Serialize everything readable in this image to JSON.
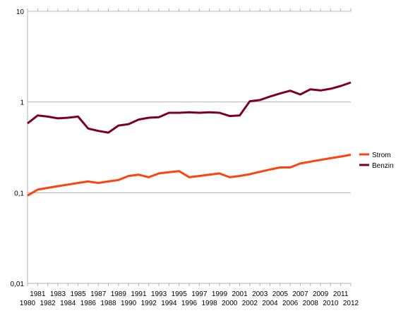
{
  "chart_data": {
    "type": "line",
    "title": "",
    "xlabel": "",
    "ylabel": "",
    "y_scale": "log",
    "ylim": [
      0.01,
      10
    ],
    "y_ticks": [
      {
        "value": 0.01,
        "label": "0,01"
      },
      {
        "value": 0.1,
        "label": "0,1"
      },
      {
        "value": 1,
        "label": "1"
      },
      {
        "value": 10,
        "label": "10"
      }
    ],
    "grid": true,
    "legend_position": "right",
    "x": [
      1980,
      1981,
      1982,
      1983,
      1984,
      1985,
      1986,
      1987,
      1988,
      1989,
      1990,
      1991,
      1992,
      1993,
      1994,
      1995,
      1996,
      1997,
      1998,
      1999,
      2000,
      2001,
      2002,
      2003,
      2004,
      2005,
      2006,
      2007,
      2008,
      2009,
      2010,
      2011,
      2012
    ],
    "x_labels": [
      "1980",
      "1981",
      "1982",
      "1983",
      "1984",
      "1985",
      "1986",
      "1987",
      "1988",
      "1989",
      "1990",
      "1991",
      "1992",
      "1993",
      "1994",
      "1995",
      "1996",
      "1997",
      "1998",
      "1999",
      "2000",
      "2001",
      "2002",
      "2003",
      "2004",
      "2005",
      "2006",
      "2007",
      "2008",
      "2009",
      "2010",
      "2011",
      "2012"
    ],
    "series": [
      {
        "name": "Strom",
        "color": "#ff420e",
        "values": [
          0.093,
          0.108,
          0.113,
          0.118,
          0.123,
          0.128,
          0.133,
          0.128,
          0.133,
          0.138,
          0.153,
          0.158,
          0.148,
          0.163,
          0.168,
          0.173,
          0.148,
          0.153,
          0.158,
          0.163,
          0.148,
          0.153,
          0.16,
          0.17,
          0.18,
          0.19,
          0.19,
          0.21,
          0.22,
          0.23,
          0.24,
          0.25,
          0.262
        ]
      },
      {
        "name": "Benzin",
        "color": "#7e0021",
        "values": [
          0.58,
          0.71,
          0.69,
          0.66,
          0.67,
          0.69,
          0.51,
          0.48,
          0.46,
          0.55,
          0.57,
          0.64,
          0.67,
          0.68,
          0.76,
          0.76,
          0.77,
          0.76,
          0.77,
          0.76,
          0.7,
          0.71,
          1.02,
          1.05,
          1.15,
          1.24,
          1.33,
          1.21,
          1.38,
          1.34,
          1.4,
          1.5,
          1.64
        ]
      }
    ]
  }
}
